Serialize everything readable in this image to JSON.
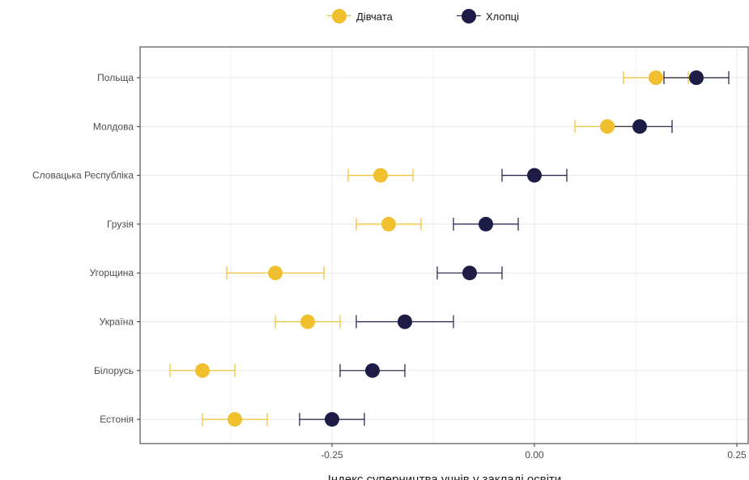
{
  "chart_data": {
    "type": "scatter",
    "xlabel": "Індекс суперництва учнів у закладі освіти",
    "ylabel": "",
    "xlim": [
      -0.487,
      0.265
    ],
    "x_ticks": [
      -0.25,
      0,
      0.25
    ],
    "x_tick_labels": [
      "-0.25",
      "0.00",
      "0.25"
    ],
    "grid": true,
    "legend_position": "top",
    "categories": [
      "Польща",
      "Молдова",
      "Словацька Республіка",
      "Грузія",
      "Угорщина",
      "Україна",
      "Білорусь",
      "Естонія"
    ],
    "series": [
      {
        "name": "Дівчата",
        "color": "#F0C02E",
        "values": [
          0.15,
          0.09,
          -0.19,
          -0.18,
          -0.32,
          -0.28,
          -0.41,
          -0.37
        ],
        "lower": [
          0.11,
          0.05,
          -0.23,
          -0.22,
          -0.38,
          -0.32,
          -0.45,
          -0.41
        ],
        "upper": [
          0.19,
          0.13,
          -0.15,
          -0.14,
          -0.26,
          -0.24,
          -0.37,
          -0.33
        ]
      },
      {
        "name": "Хлопці",
        "color": "#1C1C46",
        "values": [
          0.2,
          0.13,
          0.0,
          -0.06,
          -0.08,
          -0.16,
          -0.2,
          -0.25
        ],
        "lower": [
          0.16,
          0.09,
          -0.04,
          -0.1,
          -0.12,
          -0.22,
          -0.24,
          -0.29
        ],
        "upper": [
          0.24,
          0.17,
          0.04,
          -0.02,
          -0.04,
          -0.1,
          -0.16,
          -0.21
        ]
      }
    ]
  }
}
